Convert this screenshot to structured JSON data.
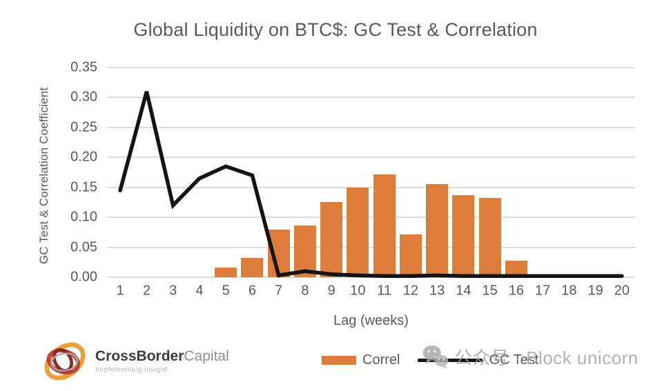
{
  "title": "Global Liquidity on BTC$: GC Test & Correlation",
  "chart_data": {
    "type": "bar+line combo",
    "title": "Global Liquidity on BTC$: GC Test & Correlation",
    "xlabel": "Lag (weeks)",
    "ylabel": "GC Test & Correlation Coefficient",
    "x": [
      1,
      2,
      3,
      4,
      5,
      6,
      7,
      8,
      9,
      10,
      11,
      12,
      13,
      14,
      15,
      16,
      17,
      18,
      19,
      20
    ],
    "ylim": [
      0,
      0.35
    ],
    "yticks": [
      "0.00",
      "0.05",
      "0.10",
      "0.15",
      "0.20",
      "0.25",
      "0.30",
      "0.35"
    ],
    "grid": true,
    "legend_position": "bottom",
    "series": [
      {
        "name": "Correl",
        "type": "bar",
        "color": "#dd7d3c",
        "values": [
          null,
          null,
          null,
          null,
          0.016,
          0.032,
          0.079,
          0.086,
          0.126,
          0.15,
          0.171,
          0.071,
          0.155,
          0.137,
          0.132,
          0.028,
          null,
          null,
          null,
          null
        ]
      },
      {
        "name": "GC Test",
        "type": "line",
        "color": "#141414",
        "values": [
          0.145,
          0.31,
          0.12,
          0.165,
          0.185,
          0.17,
          0.003,
          0.01,
          0.005,
          0.003,
          0.002,
          0.002,
          0.003,
          0.002,
          0.002,
          0.002,
          0.002,
          0.002,
          0.002,
          0.002
        ]
      }
    ]
  },
  "legend": {
    "correl_label": "Correl",
    "gc_test_label": "GC Test"
  },
  "logo": {
    "name_bold": "CrossBorder",
    "name_light": "Capital",
    "tagline": "Implementing insight"
  },
  "watermark": {
    "text": "公众号 · Block unicorn"
  },
  "colors": {
    "bar": "#dd7d3c",
    "line": "#141414",
    "grid": "#dcdcdc",
    "axis_text": "#595959",
    "watermark_text": "#a0a0a0"
  }
}
